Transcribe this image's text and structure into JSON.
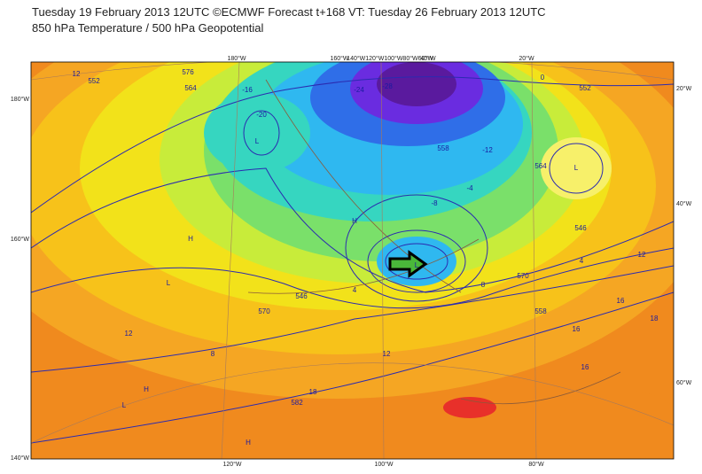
{
  "header": {
    "title": "Tuesday 19 February 2013 12UTC ©ECMWF Forecast t+168 VT: Tuesday 26 February 2013 12UTC",
    "subtitle": "850 hPa Temperature / 500 hPa Geopotential"
  },
  "map": {
    "top_labels": [
      "180°W",
      "160°W",
      "140°W120°W100°W80°W60°W",
      "40°W",
      "20°W"
    ],
    "left_labels": [
      "180°W",
      "160°W",
      "140°W"
    ],
    "right_labels": [
      "20°W",
      "40°W",
      "60°W"
    ],
    "bottom_labels": [
      "120°W",
      "100°W",
      "80°W"
    ],
    "contour_labels": [
      "12",
      "552",
      "576",
      "564",
      "-16",
      "-20",
      "-24",
      "-28",
      "558",
      "0",
      "-12",
      "546",
      "4",
      "-8",
      "-4",
      "570",
      "8",
      "12",
      "16",
      "18",
      "582",
      "570",
      "558",
      "546",
      "4",
      "12",
      "16",
      "18",
      "16",
      "12",
      "8",
      "552",
      "564",
      "L",
      "H",
      "L",
      "H",
      "L",
      "H",
      "L",
      "L",
      "H"
    ]
  }
}
